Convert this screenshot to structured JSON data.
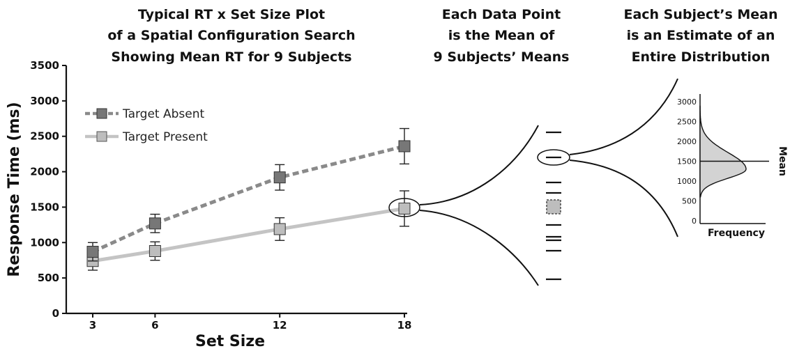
{
  "titles": {
    "main": [
      "Typical RT x Set Size Plot",
      "of a Spatial Configuration Search",
      "Showing Mean RT for 9 Subjects"
    ],
    "middle": [
      "Each Data Point",
      "is the Mean of",
      "9 Subjects’ Means"
    ],
    "right": [
      "Each Subject’s Mean",
      "is an Estimate of an",
      "Entire Distribution"
    ]
  },
  "chart_data": [
    {
      "type": "line",
      "xlabel": "Set Size",
      "ylabel": "Response Time (ms)",
      "x": [
        3,
        6,
        12,
        18
      ],
      "x_ticks": [
        "3",
        "6",
        "12",
        "18"
      ],
      "ylim": [
        0,
        3500
      ],
      "y_ticks": [
        "0",
        "500",
        "1000",
        "1500",
        "2000",
        "2500",
        "3000",
        "3500"
      ],
      "legend_position": "top-left",
      "series": [
        {
          "name": "Target Absent",
          "values": [
            870,
            1270,
            1920,
            2360
          ],
          "error": [
            130,
            130,
            180,
            250
          ],
          "line_style": "dashed",
          "color": "#8a8a8a",
          "marker_color": "#777777"
        },
        {
          "name": "Target Present",
          "values": [
            740,
            880,
            1190,
            1480
          ],
          "error": [
            130,
            130,
            160,
            250
          ],
          "line_style": "solid",
          "color": "#c4c4c4",
          "marker_color": "#bdbdbd"
        }
      ]
    },
    {
      "type": "area",
      "ylim": [
        0,
        3000
      ],
      "y_ticks": [
        "0",
        "500",
        "1000",
        "1500",
        "2000",
        "2500",
        "3000"
      ],
      "xlabel": "Frequency",
      "mean_label": "Mean",
      "mean_value": 1500,
      "fill_color": "#d3d3d3"
    }
  ]
}
